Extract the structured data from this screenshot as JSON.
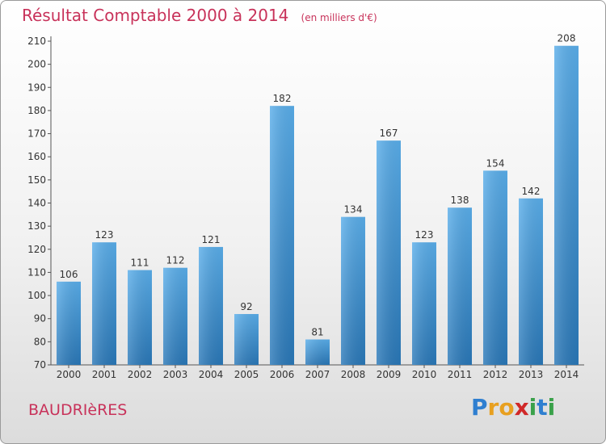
{
  "chart_data": {
    "type": "bar",
    "title": "Résultat Comptable 2000 à 2014",
    "subtitle": "(en milliers d'€)",
    "xlabel": "",
    "ylabel": "",
    "categories": [
      "2000",
      "2001",
      "2002",
      "2003",
      "2004",
      "2005",
      "2006",
      "2007",
      "2008",
      "2009",
      "2010",
      "2011",
      "2012",
      "2013",
      "2014"
    ],
    "values": [
      106,
      123,
      111,
      112,
      121,
      92,
      182,
      81,
      134,
      167,
      123,
      138,
      154,
      142,
      208
    ],
    "ylim": [
      70,
      210
    ],
    "yticks": [
      70,
      80,
      90,
      100,
      110,
      120,
      130,
      140,
      150,
      160,
      170,
      180,
      190,
      200,
      210
    ],
    "grid": false,
    "bar_color": "#3a8fd6",
    "accent_color": "#c8325a"
  },
  "footer": {
    "city": "BAUDRIèRES",
    "logo_letters": [
      {
        "ch": "P",
        "color": "#2f7fd0"
      },
      {
        "ch": "r",
        "color": "#e8a020"
      },
      {
        "ch": "o",
        "color": "#e8a020"
      },
      {
        "ch": "x",
        "color": "#d02828"
      },
      {
        "ch": "i",
        "color": "#3aa14a"
      },
      {
        "ch": "t",
        "color": "#2f7fd0"
      },
      {
        "ch": "i",
        "color": "#3aa14a"
      }
    ]
  }
}
